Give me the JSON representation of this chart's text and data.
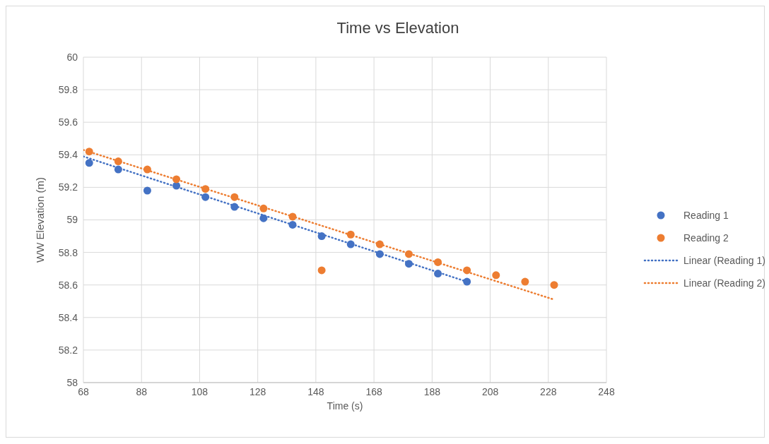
{
  "chart_data": {
    "type": "scatter",
    "title": "Time vs Elevation",
    "xlabel": "Time (s)",
    "ylabel": "WW Elevation (m)",
    "xlim": [
      68,
      248
    ],
    "xticks": [
      68,
      88,
      108,
      128,
      148,
      168,
      188,
      208,
      228,
      248
    ],
    "ylim": [
      58,
      60
    ],
    "yticks": [
      58,
      58.2,
      58.4,
      58.6,
      58.8,
      59,
      59.2,
      59.4,
      59.6,
      59.8,
      60
    ],
    "grid": true,
    "legend": "right",
    "marker": "circle",
    "series": [
      {
        "name": "Reading 1",
        "color": "#4472c4",
        "x": [
          70,
          80,
          90,
          100,
          110,
          120,
          130,
          140,
          150,
          160,
          170,
          180,
          190,
          200
        ],
        "values": [
          59.35,
          59.31,
          59.18,
          59.21,
          59.14,
          59.08,
          59.01,
          58.97,
          58.9,
          58.85,
          58.79,
          58.73,
          58.67,
          58.62
        ]
      },
      {
        "name": "Reading 2",
        "color": "#ed7d31",
        "x": [
          70,
          80,
          90,
          100,
          110,
          120,
          130,
          140,
          150,
          160,
          170,
          180,
          190,
          200,
          210,
          220,
          230
        ],
        "values": [
          59.42,
          59.36,
          59.31,
          59.25,
          59.19,
          59.14,
          59.07,
          59.02,
          58.69,
          58.91,
          58.85,
          58.79,
          58.74,
          58.69,
          58.66,
          58.62,
          58.6
        ]
      },
      {
        "name": "Linear (Reading 1)",
        "type": "line",
        "color": "#4472c4",
        "line_style": "dotted",
        "marker": "none",
        "x": [
          68,
          200
        ],
        "values": [
          59.39,
          58.62
        ]
      },
      {
        "name": "Linear (Reading 2)",
        "type": "line",
        "color": "#ed7d31",
        "line_style": "dotted",
        "marker": "none",
        "x": [
          68,
          230
        ],
        "values": [
          59.43,
          58.51
        ]
      }
    ]
  }
}
